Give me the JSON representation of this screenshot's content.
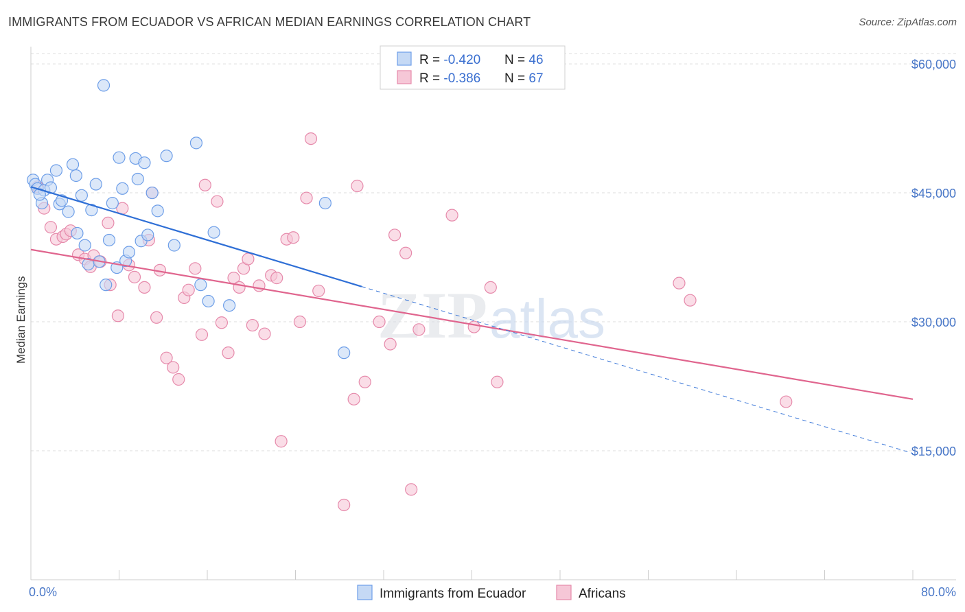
{
  "header": {
    "title": "IMMIGRANTS FROM ECUADOR VS AFRICAN MEDIAN EARNINGS CORRELATION CHART",
    "source": "Source: ZipAtlas.com"
  },
  "colors": {
    "ecuador": "#6d9ee8",
    "ecuador_fill": "#c5d9f5",
    "ecuador_line": "#2f6fd6",
    "africans": "#e68aab",
    "africans_fill": "#f6c7d7",
    "africans_line": "#e0658e",
    "tick_label": "#4a78c8",
    "grid": "#dddddd"
  },
  "legend_top": {
    "rows": [
      {
        "r_label": "R = ",
        "r_value": "-0.420",
        "n_label": "N = ",
        "n_value": "46"
      },
      {
        "r_label": "R = ",
        "r_value": "-0.386",
        "n_label": "N = ",
        "n_value": "67"
      }
    ]
  },
  "legend_bottom": {
    "items": [
      "Immigrants from Ecuador",
      "Africans"
    ]
  },
  "watermark": {
    "zip": "ZIP",
    "atlas": "atlas"
  },
  "chart_data": {
    "type": "scatter",
    "title": "IMMIGRANTS FROM ECUADOR VS AFRICAN MEDIAN EARNINGS CORRELATION CHART",
    "ylabel": "Median Earnings",
    "xlim": [
      0,
      80
    ],
    "ylim": [
      0,
      62000
    ],
    "x_tick_labels": [
      "0.0%",
      "80.0%"
    ],
    "y_ticks": [
      15000,
      30000,
      45000,
      60000
    ],
    "y_tick_labels": [
      "$15,000",
      "$30,000",
      "$45,000",
      "$60,000"
    ],
    "grid": true,
    "legend_position": "top-center",
    "series": [
      {
        "name": "Immigrants from Ecuador",
        "r": -0.42,
        "n": 46,
        "trend": {
          "x0": 0,
          "y0": 45700,
          "x1": 30,
          "y1": 34100,
          "dashed_to_x": 80,
          "dashed_to_y": 14700
        },
        "points": [
          [
            0.2,
            46500
          ],
          [
            0.4,
            46000
          ],
          [
            0.6,
            45500
          ],
          [
            1.0,
            43800
          ],
          [
            1.2,
            45300
          ],
          [
            1.5,
            46500
          ],
          [
            1.8,
            45600
          ],
          [
            2.3,
            47600
          ],
          [
            2.6,
            43700
          ],
          [
            2.8,
            44100
          ],
          [
            3.4,
            42800
          ],
          [
            3.8,
            48300
          ],
          [
            4.1,
            47000
          ],
          [
            4.2,
            40300
          ],
          [
            4.6,
            44700
          ],
          [
            4.9,
            38900
          ],
          [
            5.2,
            36700
          ],
          [
            5.5,
            43000
          ],
          [
            5.9,
            46000
          ],
          [
            6.2,
            37000
          ],
          [
            6.6,
            57500
          ],
          [
            6.8,
            34300
          ],
          [
            7.1,
            39500
          ],
          [
            7.4,
            43800
          ],
          [
            7.8,
            36300
          ],
          [
            8.0,
            49100
          ],
          [
            8.3,
            45500
          ],
          [
            8.6,
            37100
          ],
          [
            8.9,
            38100
          ],
          [
            9.5,
            49000
          ],
          [
            9.7,
            46600
          ],
          [
            10.0,
            39400
          ],
          [
            10.3,
            48500
          ],
          [
            10.6,
            40100
          ],
          [
            11.0,
            45000
          ],
          [
            11.5,
            42900
          ],
          [
            12.3,
            49300
          ],
          [
            13.0,
            38900
          ],
          [
            15.0,
            50800
          ],
          [
            15.4,
            34300
          ],
          [
            16.1,
            32400
          ],
          [
            16.6,
            40400
          ],
          [
            18.0,
            31900
          ],
          [
            26.7,
            43800
          ],
          [
            28.4,
            26400
          ],
          [
            0.8,
            44800
          ]
        ]
      },
      {
        "name": "Africans",
        "r": -0.386,
        "n": 67,
        "trend": {
          "x0": 0,
          "y0": 38400,
          "x1": 80,
          "y1": 21000
        },
        "points": [
          [
            0.6,
            45700
          ],
          [
            1.2,
            43200
          ],
          [
            1.8,
            41000
          ],
          [
            2.3,
            39600
          ],
          [
            2.9,
            39900
          ],
          [
            3.2,
            40200
          ],
          [
            3.6,
            40600
          ],
          [
            4.3,
            37800
          ],
          [
            4.9,
            37300
          ],
          [
            5.4,
            36400
          ],
          [
            5.7,
            37700
          ],
          [
            6.3,
            37000
          ],
          [
            7.0,
            41500
          ],
          [
            7.2,
            34300
          ],
          [
            7.9,
            30700
          ],
          [
            8.3,
            43200
          ],
          [
            8.9,
            36600
          ],
          [
            9.4,
            35200
          ],
          [
            10.3,
            34000
          ],
          [
            10.7,
            39500
          ],
          [
            11.0,
            45000
          ],
          [
            11.4,
            30500
          ],
          [
            11.7,
            36000
          ],
          [
            12.3,
            25800
          ],
          [
            12.9,
            24700
          ],
          [
            13.4,
            23300
          ],
          [
            13.9,
            32800
          ],
          [
            14.3,
            33700
          ],
          [
            14.9,
            36200
          ],
          [
            15.5,
            28500
          ],
          [
            15.8,
            45900
          ],
          [
            16.9,
            44000
          ],
          [
            17.3,
            29900
          ],
          [
            17.9,
            26400
          ],
          [
            18.4,
            35100
          ],
          [
            18.9,
            34000
          ],
          [
            19.3,
            36200
          ],
          [
            19.7,
            37300
          ],
          [
            20.1,
            29600
          ],
          [
            20.7,
            34200
          ],
          [
            21.2,
            28600
          ],
          [
            21.8,
            35400
          ],
          [
            22.3,
            35100
          ],
          [
            22.7,
            16100
          ],
          [
            23.2,
            39600
          ],
          [
            23.8,
            39800
          ],
          [
            24.4,
            30000
          ],
          [
            25.0,
            44400
          ],
          [
            25.4,
            51300
          ],
          [
            26.1,
            33600
          ],
          [
            28.4,
            8700
          ],
          [
            29.3,
            21000
          ],
          [
            29.6,
            45800
          ],
          [
            30.3,
            23000
          ],
          [
            31.6,
            30000
          ],
          [
            32.6,
            27400
          ],
          [
            33.0,
            40100
          ],
          [
            34.0,
            38000
          ],
          [
            34.5,
            10500
          ],
          [
            35.2,
            29100
          ],
          [
            38.2,
            42400
          ],
          [
            40.2,
            29400
          ],
          [
            41.7,
            34000
          ],
          [
            42.3,
            23000
          ],
          [
            58.8,
            34500
          ],
          [
            59.8,
            32500
          ],
          [
            68.5,
            20700
          ]
        ]
      }
    ]
  }
}
